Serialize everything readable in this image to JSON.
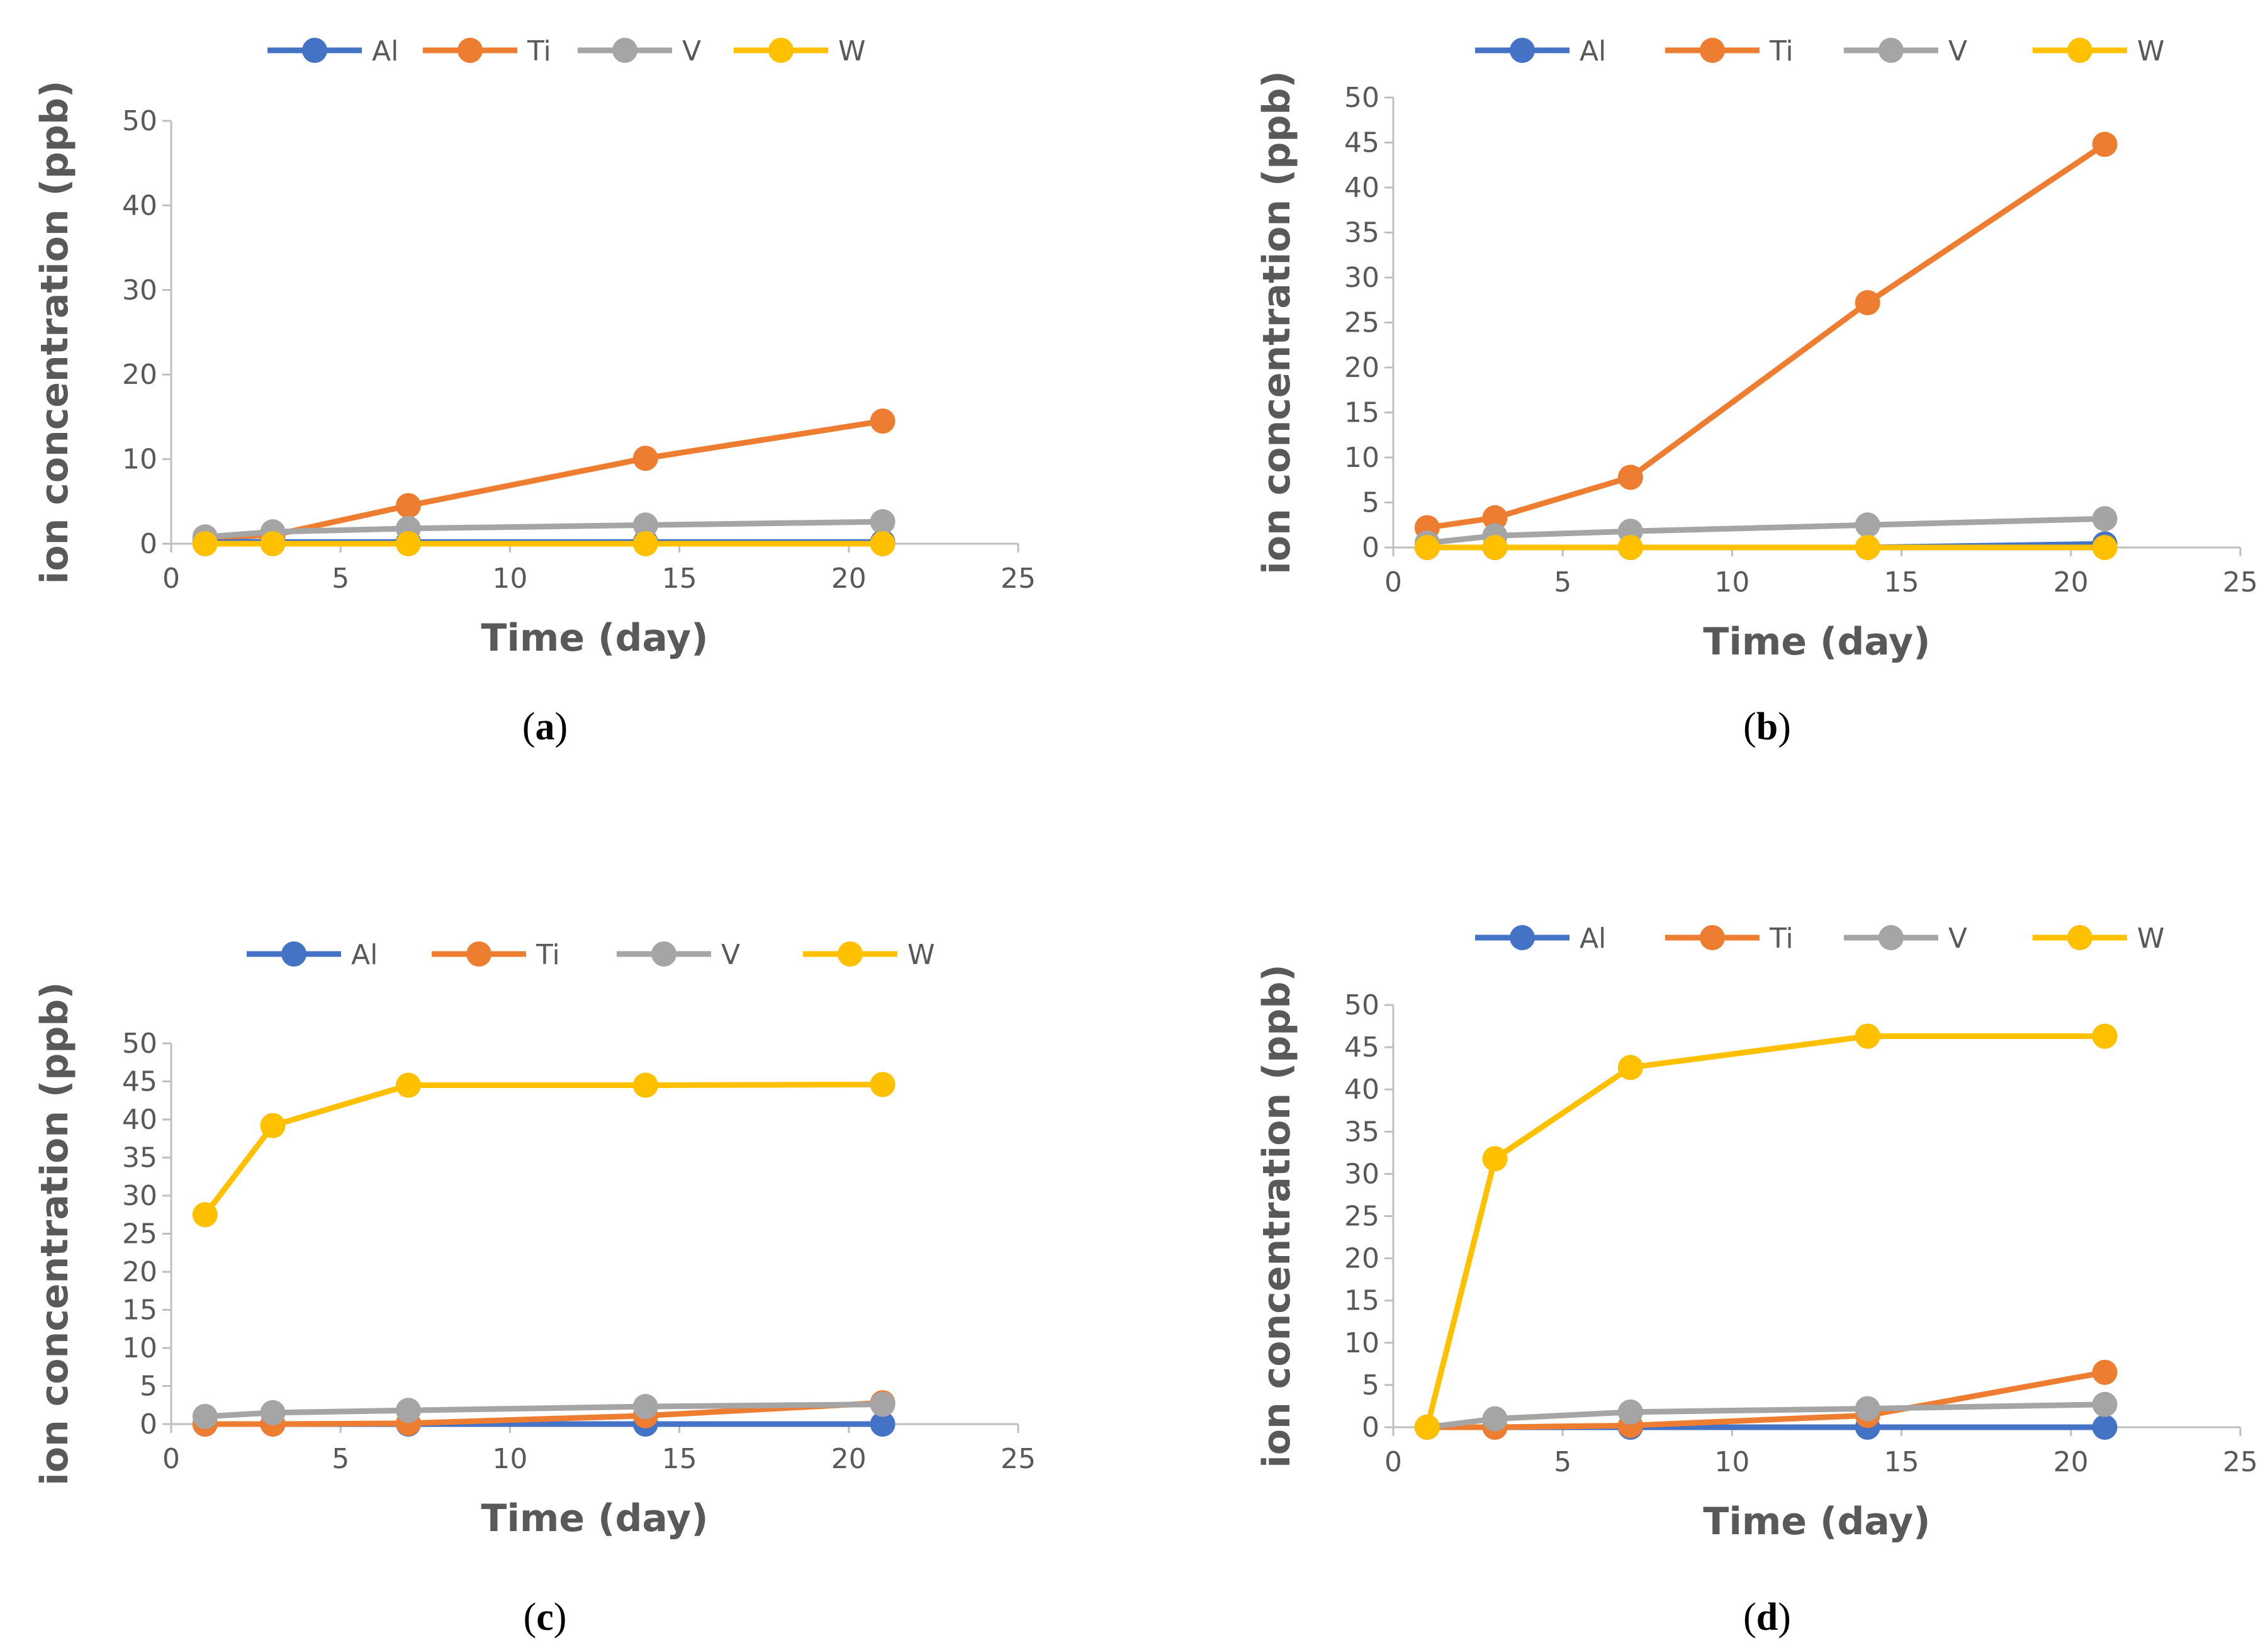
{
  "chart_data": [
    {
      "id": "a",
      "type": "line",
      "caption_letter": "a",
      "xlabel": "Time (day)",
      "ylabel": "ion concentration (ppb)",
      "xlim": [
        0,
        25
      ],
      "xticks": [
        0,
        5,
        10,
        15,
        20,
        25
      ],
      "ylim": [
        0,
        50
      ],
      "yticks": [
        0,
        10,
        20,
        30,
        40,
        50
      ],
      "grid": false,
      "legend_position": "top",
      "x": [
        1,
        3,
        7,
        14,
        21
      ],
      "series": [
        {
          "name": "Al",
          "color": "#4472c4",
          "values": [
            0.3,
            0.2,
            0.2,
            0.2,
            0.2
          ]
        },
        {
          "name": "Ti",
          "color": "#ed7d31",
          "values": [
            0.8,
            1.0,
            4.5,
            10.1,
            14.5
          ]
        },
        {
          "name": "V",
          "color": "#a5a5a5",
          "values": [
            0.8,
            1.4,
            1.8,
            2.2,
            2.6
          ]
        },
        {
          "name": "W",
          "color": "#ffc000",
          "values": [
            0.0,
            0.0,
            0.0,
            0.0,
            0.0
          ]
        }
      ]
    },
    {
      "id": "b",
      "type": "line",
      "caption_letter": "b",
      "xlabel": "Time (day)",
      "ylabel": "ion concentration (ppb)",
      "xlim": [
        0,
        25
      ],
      "xticks": [
        0,
        5,
        10,
        15,
        20,
        25
      ],
      "ylim": [
        0,
        50
      ],
      "yticks": [
        0,
        5,
        10,
        15,
        20,
        25,
        30,
        35,
        40,
        45,
        50
      ],
      "grid": false,
      "legend_position": "top",
      "x": [
        1,
        3,
        7,
        14,
        21
      ],
      "series": [
        {
          "name": "Al",
          "color": "#4472c4",
          "values": [
            0.0,
            0.0,
            0.0,
            0.0,
            0.4
          ]
        },
        {
          "name": "Ti",
          "color": "#ed7d31",
          "values": [
            2.2,
            3.3,
            7.8,
            27.2,
            44.8
          ]
        },
        {
          "name": "V",
          "color": "#a5a5a5",
          "values": [
            0.5,
            1.3,
            1.8,
            2.5,
            3.2
          ]
        },
        {
          "name": "W",
          "color": "#ffc000",
          "values": [
            0.0,
            0.0,
            0.0,
            0.0,
            0.0
          ]
        }
      ]
    },
    {
      "id": "c",
      "type": "line",
      "caption_letter": "c",
      "xlabel": "Time (day)",
      "ylabel": "ion concentration (ppb)",
      "xlim": [
        0,
        25
      ],
      "xticks": [
        0,
        5,
        10,
        15,
        20,
        25
      ],
      "ylim": [
        0,
        50
      ],
      "yticks": [
        0,
        5,
        10,
        15,
        20,
        25,
        30,
        35,
        40,
        45,
        50
      ],
      "grid": false,
      "legend_position": "top",
      "x": [
        1,
        3,
        7,
        14,
        21
      ],
      "series": [
        {
          "name": "Al",
          "color": "#4472c4",
          "values": [
            0.0,
            0.0,
            0.0,
            0.0,
            0.0
          ]
        },
        {
          "name": "Ti",
          "color": "#ed7d31",
          "values": [
            0.0,
            0.0,
            0.1,
            1.1,
            2.8
          ]
        },
        {
          "name": "V",
          "color": "#a5a5a5",
          "values": [
            1.0,
            1.5,
            1.8,
            2.3,
            2.6
          ]
        },
        {
          "name": "W",
          "color": "#ffc000",
          "values": [
            27.5,
            39.2,
            44.5,
            44.5,
            44.6
          ]
        }
      ]
    },
    {
      "id": "d",
      "type": "line",
      "caption_letter": "d",
      "xlabel": "Time (day)",
      "ylabel": "ion concentration (ppb)",
      "xlim": [
        0,
        25
      ],
      "xticks": [
        0,
        5,
        10,
        15,
        20,
        25
      ],
      "ylim": [
        0,
        50
      ],
      "yticks": [
        0,
        5,
        10,
        15,
        20,
        25,
        30,
        35,
        40,
        45,
        50
      ],
      "grid": false,
      "legend_position": "top",
      "x": [
        1,
        3,
        7,
        14,
        21
      ],
      "series": [
        {
          "name": "Al",
          "color": "#4472c4",
          "values": [
            0.0,
            0.0,
            0.0,
            0.0,
            0.0
          ]
        },
        {
          "name": "Ti",
          "color": "#ed7d31",
          "values": [
            0.0,
            0.0,
            0.2,
            1.4,
            6.5
          ]
        },
        {
          "name": "V",
          "color": "#a5a5a5",
          "values": [
            0.0,
            1.0,
            1.8,
            2.2,
            2.7
          ]
        },
        {
          "name": "W",
          "color": "#ffc000",
          "values": [
            0.0,
            31.8,
            42.6,
            46.3,
            46.3
          ]
        }
      ]
    }
  ]
}
